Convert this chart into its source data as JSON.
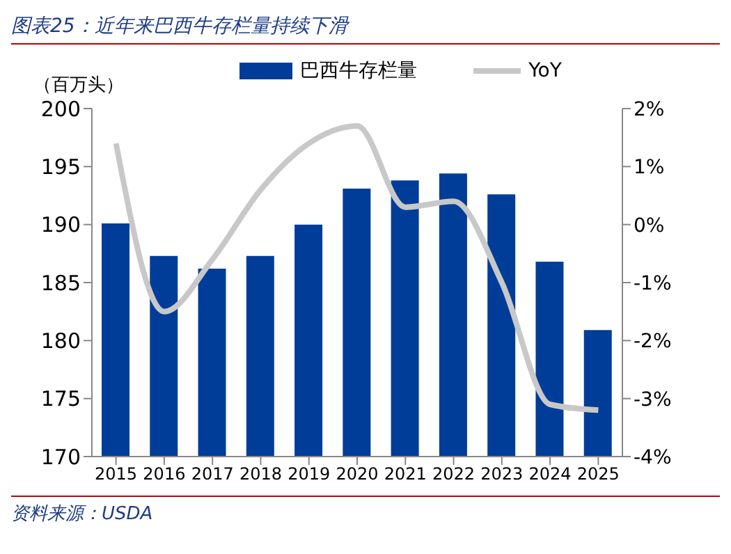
{
  "chart_data": {
    "type": "bar",
    "title": "图表25：近年来巴西牛存栏量持续下滑",
    "ylabel": "（百万头）",
    "categories": [
      "2015",
      "2016",
      "2017",
      "2018",
      "2019",
      "2020",
      "2021",
      "2022",
      "2023",
      "2024",
      "2025"
    ],
    "series": [
      {
        "name": "巴西牛存栏量",
        "color": "#003d99",
        "values": [
          190.1,
          187.3,
          186.2,
          187.3,
          190.0,
          193.1,
          193.8,
          194.4,
          192.6,
          186.8,
          180.9
        ]
      },
      {
        "name": "YoY",
        "type": "line",
        "axis": "y2",
        "color": "#c8c8c8",
        "values": [
          1.4,
          -1.5,
          -0.6,
          0.6,
          1.4,
          1.7,
          0.3,
          0.4,
          -1.0,
          -3.1,
          -3.2
        ]
      }
    ],
    "ylim": [
      170,
      200
    ],
    "yticks": [
      170,
      175,
      180,
      185,
      190,
      195,
      200
    ],
    "y2lim": [
      -4,
      2
    ],
    "y2ticks": [
      {
        "value": -4,
        "label": "-4%"
      },
      {
        "value": -3,
        "label": "-3%"
      },
      {
        "value": -2,
        "label": "-2%"
      },
      {
        "value": -1,
        "label": "-1%"
      },
      {
        "value": 0,
        "label": "0%"
      },
      {
        "value": 1,
        "label": "1%"
      },
      {
        "value": 2,
        "label": "2%"
      }
    ],
    "grid": false,
    "legend": "top",
    "marker": "none",
    "line_style": "solid",
    "annotations": [
      "资料来源：USDA"
    ]
  }
}
